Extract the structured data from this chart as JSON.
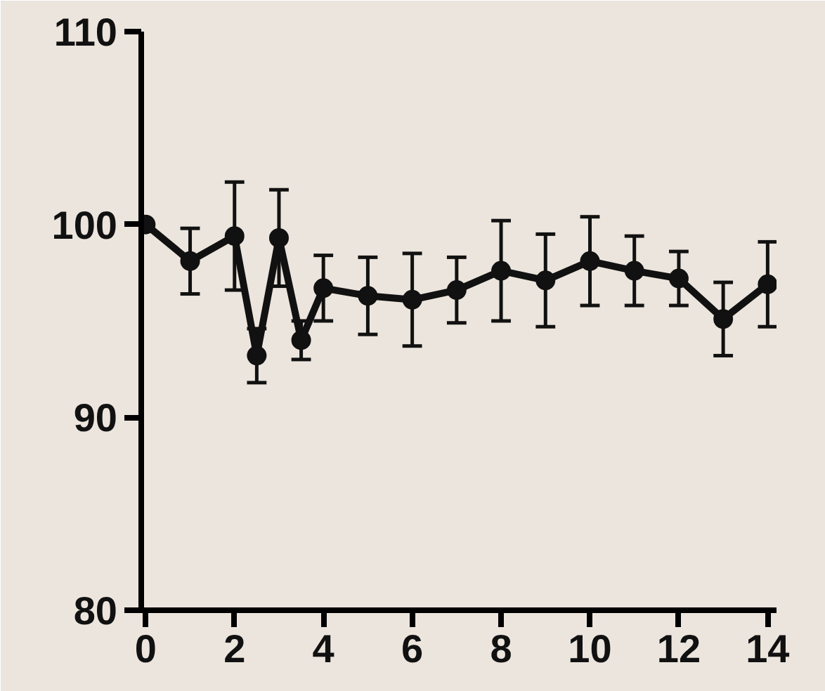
{
  "chart_data": {
    "type": "line",
    "marker": "circle",
    "line_style": "solid",
    "grid": false,
    "x": [
      0,
      1,
      2,
      2.5,
      3,
      3.5,
      4,
      5,
      6,
      7,
      8,
      9,
      10,
      11,
      12,
      13,
      14
    ],
    "series": [
      {
        "color": "#111111",
        "values": [
          100,
          98.1,
          99.4,
          93.2,
          99.3,
          94,
          96.7,
          96.3,
          96.1,
          96.6,
          97.6,
          97.1,
          98.1,
          97.6,
          97.2,
          95.1,
          96.9
        ],
        "errors": [
          null,
          1.7,
          2.8,
          1.4,
          2.5,
          1,
          1.7,
          2,
          2.4,
          1.7,
          2.6,
          2.4,
          2.3,
          1.8,
          1.4,
          1.9,
          2.2
        ]
      }
    ],
    "xlim": [
      -0.1,
      14.2
    ],
    "ylim": [
      80,
      110
    ],
    "xticks": [
      0,
      2,
      4,
      6,
      8,
      10,
      12,
      14
    ],
    "yticks": [
      80,
      90,
      100,
      110
    ]
  }
}
